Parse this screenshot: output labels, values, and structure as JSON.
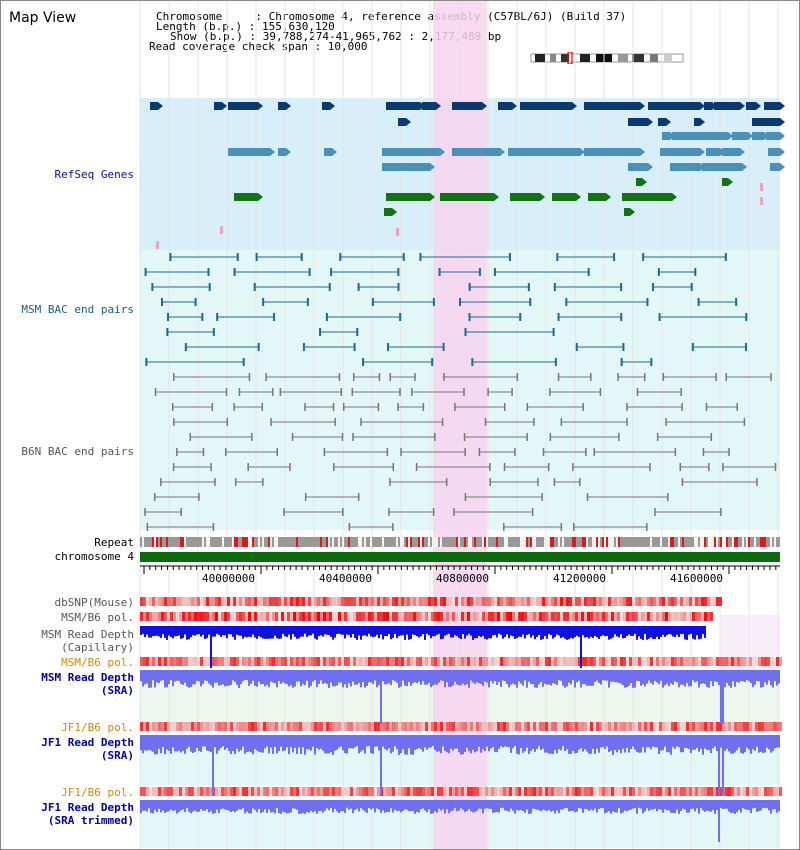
{
  "title": "Map View",
  "info": {
    "line1": "Chromosome     : Chromosome 4, reference assembly (C57BL/6J) (Build 37)",
    "line2": "Length (b.p.) : 155,630,120",
    "line3": "Show (b.p.) : 39,788,274-41,965,762 : 2,177,489 bp",
    "line4": "Read coverage check span : 10,000"
  },
  "tracks": {
    "refseq": "RefSeq Genes",
    "msm_bac": "MSM BAC end pairs",
    "b6n_bac": "B6N BAC end pairs",
    "repeat": "Repeat",
    "chromosome": "chromosome 4",
    "dbsnp": "dbSNP(Mouse)",
    "msm_b6_pol": "MSM/B6 pol.",
    "msm_depth_cap": "MSM Read Depth\n(Capillary)",
    "msm_b6_pol2": "MSM/B6 pol.",
    "msm_depth_sra": "MSM Read Depth\n(SRA)",
    "jf1_b6_pol": "JF1/B6 pol.",
    "jf1_depth_sra": "JF1 Read Depth\n(SRA)",
    "jf1_b6_pol2": "JF1/B6 pol.",
    "jf1_depth_trim": "JF1 Read Depth\n(SRA trimmed)"
  },
  "axis": {
    "ticks": [
      "40000000",
      "40400000",
      "40800000",
      "41200000",
      "41600000"
    ]
  },
  "colors": {
    "refseq_bg": "#d8eef9",
    "bac_bg": "#e4f7f7",
    "highlight": "#f7d4ef",
    "chromosome_bar": "#0b6a0b",
    "gene_dark": "#0b3a70",
    "gene_mid": "#4a90b8",
    "gene_green": "#137313",
    "depth_blue": "#1010e0",
    "depth_light": "#6f6ff0"
  }
}
